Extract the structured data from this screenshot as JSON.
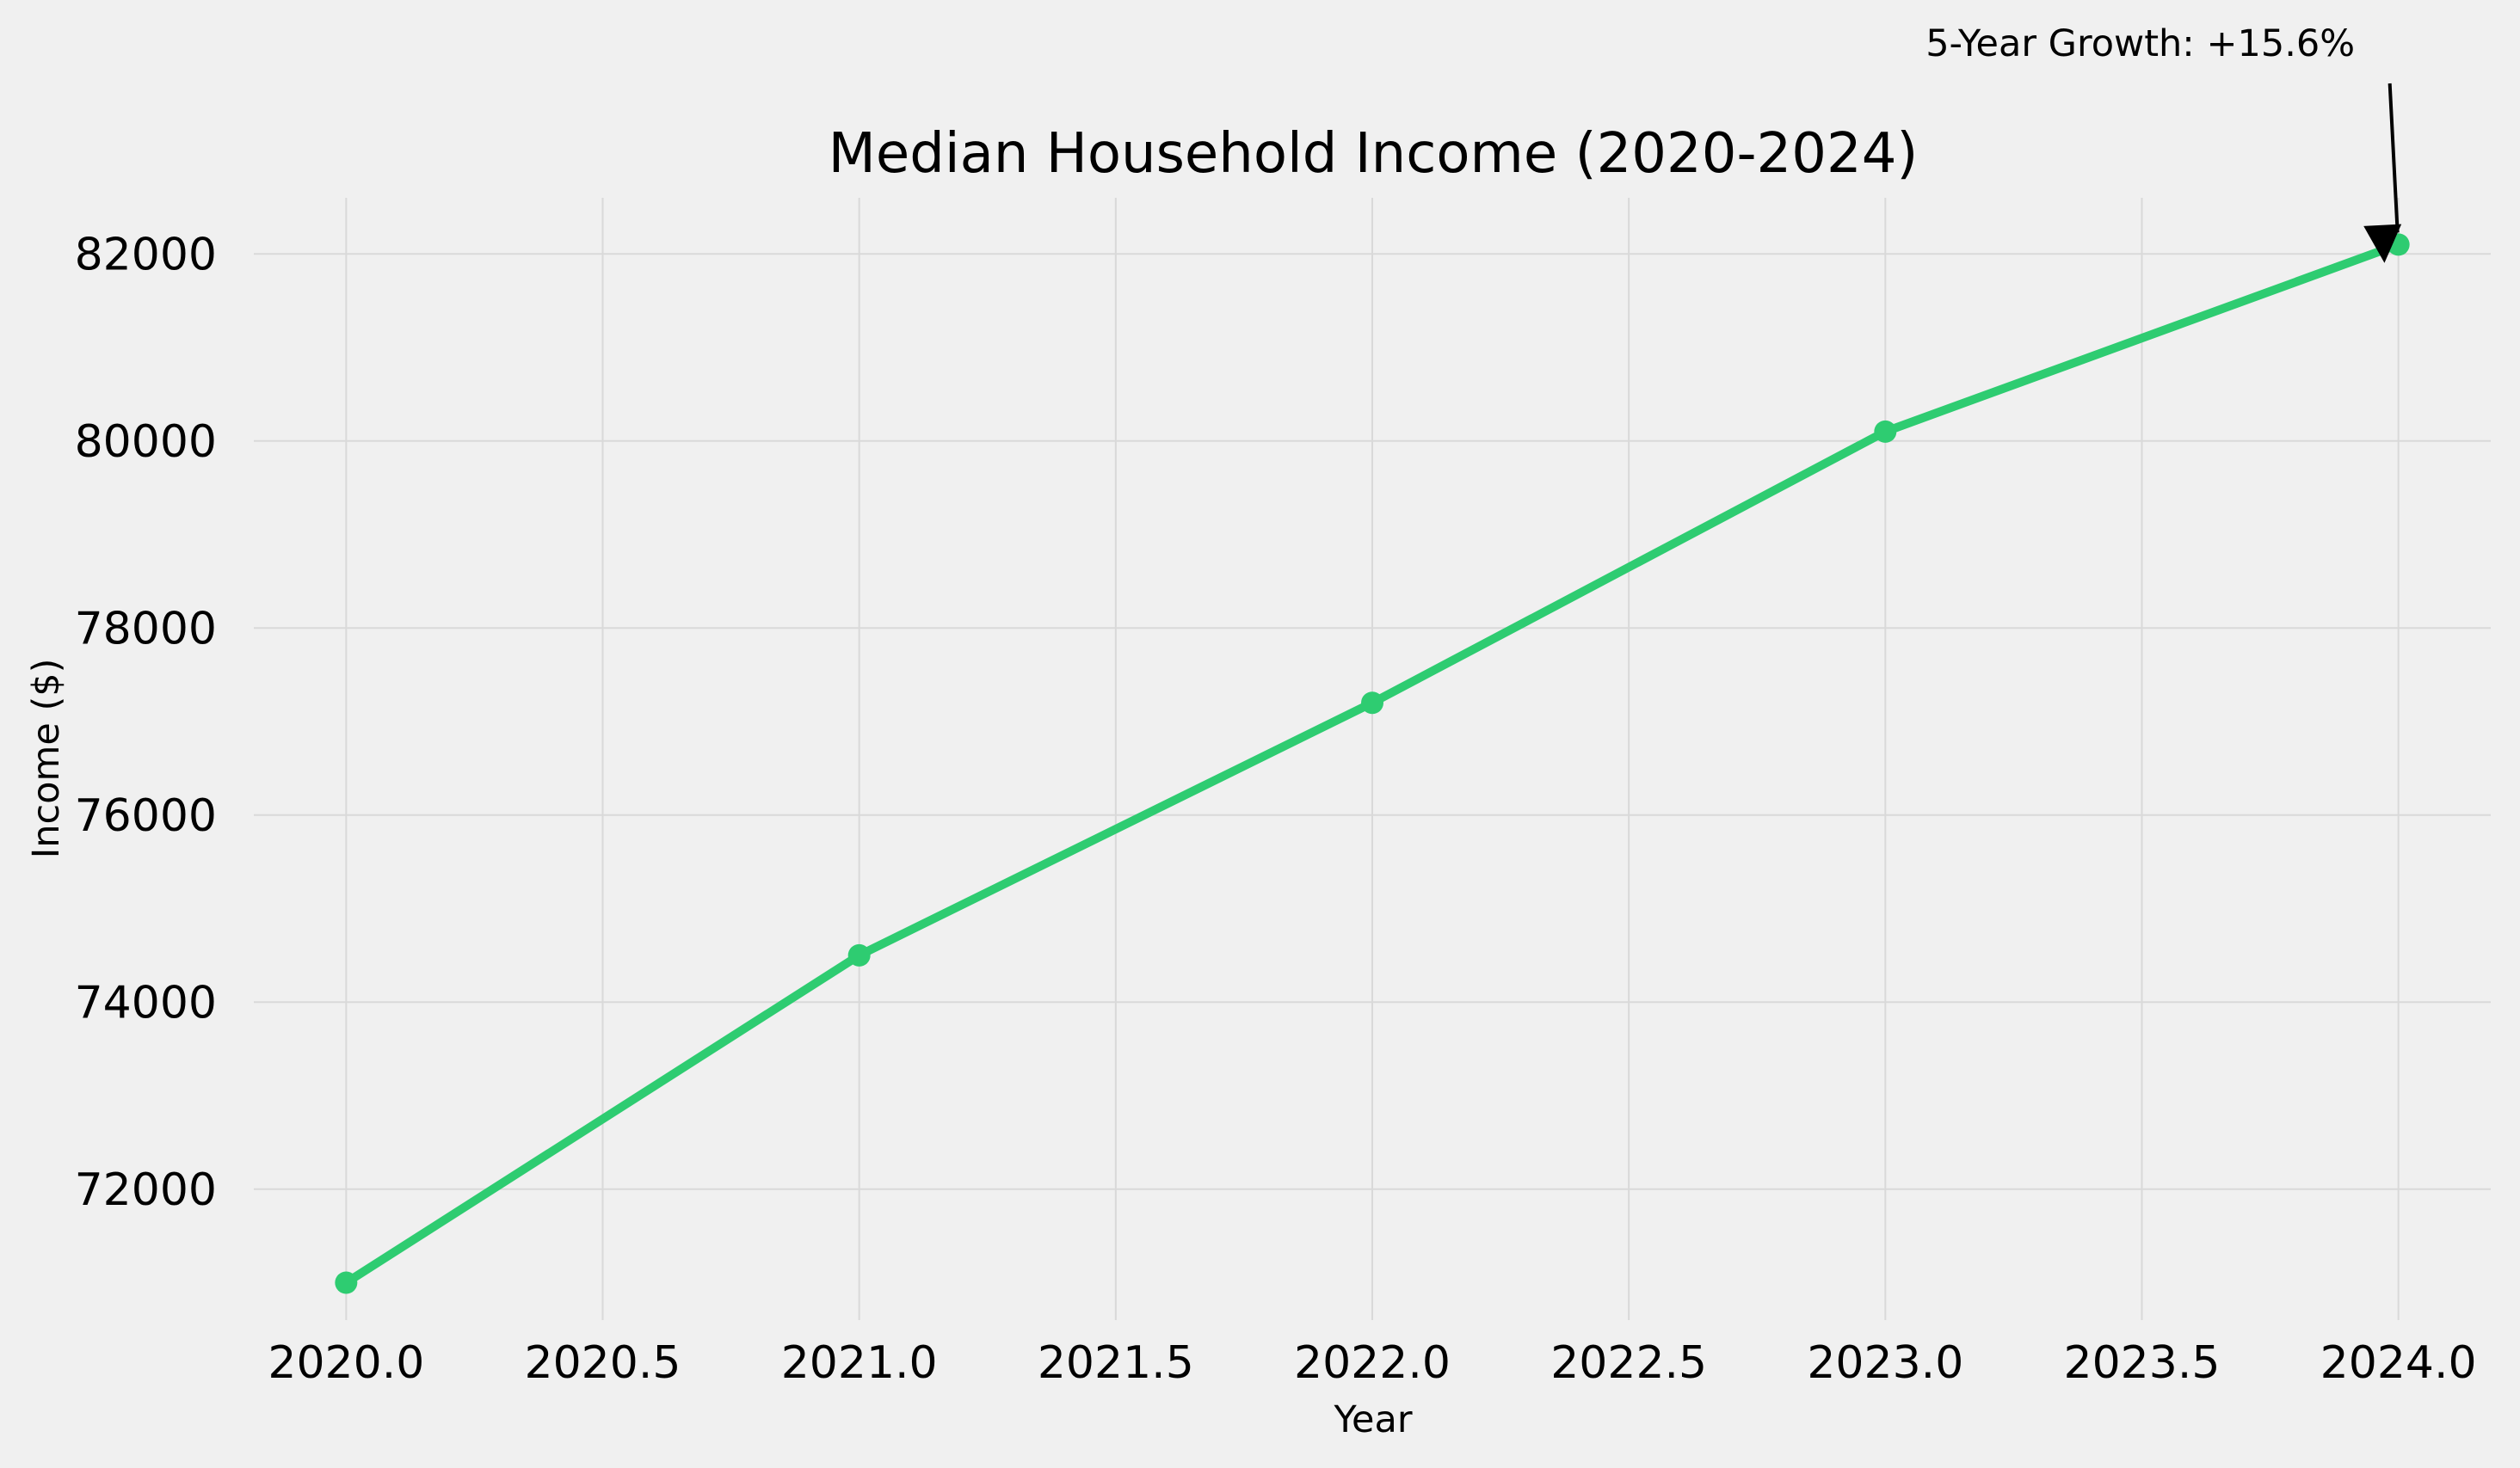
{
  "chart_data": {
    "type": "line",
    "title": "Median Household Income (2020-2024)",
    "xlabel": "Year",
    "ylabel": "Income ($)",
    "x": [
      2020,
      2021,
      2022,
      2023,
      2024
    ],
    "series": [
      {
        "values": [
          71000,
          74500,
          77200,
          80100,
          82100
        ]
      }
    ],
    "xlim": [
      2019.82,
      2024.18
    ],
    "ylim": [
      70600,
      82600
    ],
    "x_ticks": [
      "2020.0",
      "2020.5",
      "2021.0",
      "2021.5",
      "2022.0",
      "2022.5",
      "2023.0",
      "2023.5",
      "2024.0"
    ],
    "x_tick_values": [
      2020.0,
      2020.5,
      2021.0,
      2021.5,
      2022.0,
      2022.5,
      2023.0,
      2023.5,
      2024.0
    ],
    "y_ticks": [
      "72000",
      "74000",
      "76000",
      "78000",
      "80000",
      "82000"
    ],
    "y_tick_values": [
      72000,
      74000,
      76000,
      78000,
      80000,
      82000
    ],
    "grid": true,
    "legend": "none",
    "line_color": "#2ecc71",
    "annotation": {
      "text": "5-Year Growth: +15.6%",
      "target_x": 2024,
      "target_y": 82100
    }
  }
}
